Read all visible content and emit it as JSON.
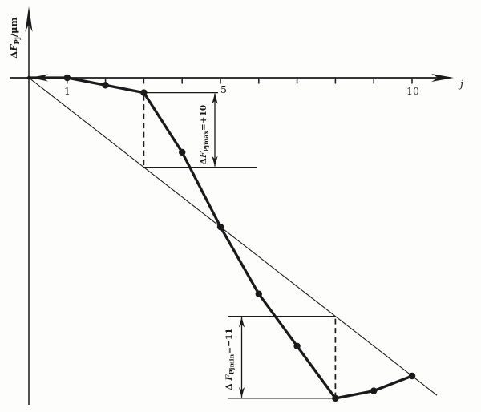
{
  "figure": {
    "background": "#fdfdfb",
    "ink": "#1a1a1a"
  },
  "chart_data": {
    "type": "line",
    "title": "",
    "xlabel": "j",
    "ylabel": "ΔF_Pj/μm",
    "ylabel_parts": {
      "prefix": "ΔF",
      "sub": "Pj",
      "suffix": "/μm"
    },
    "x": [
      0,
      1,
      2,
      3,
      4,
      5,
      6,
      7,
      8,
      9,
      10
    ],
    "series": [
      {
        "name": "cumulative-deviation-curve",
        "values": [
          0,
          0,
          -1,
          -2,
          -10,
          -20,
          -29,
          -36,
          -43,
          -42,
          -40
        ]
      }
    ],
    "reference_line": {
      "name": "linear-reference-line",
      "from_j": 0,
      "from_value": 0,
      "to_j": 10,
      "to_value": -40,
      "extend_to_j": 10.65
    },
    "x_ticks": [
      1,
      2,
      3,
      4,
      5,
      6,
      7,
      8,
      9,
      10
    ],
    "x_tick_labels": [
      {
        "j": 1,
        "label": "1"
      },
      {
        "j": 5,
        "label": "5"
      },
      {
        "j": 10,
        "label": "10"
      }
    ],
    "ylim": [
      -45,
      2
    ],
    "grid": false,
    "legend": "none",
    "annotations": [
      {
        "id": "max",
        "full": "ΔF_Pjmax=+10",
        "prefix": "ΔF",
        "sub": "Pjmax",
        "eq": "=+10",
        "at_j": 3,
        "curve_value": -2,
        "line_value": -12,
        "deviation": 10
      },
      {
        "id": "min",
        "full": "Δ F_Pjmin=−11",
        "prefix": "Δ F",
        "sub": "Pjmin",
        "eq": "=−11",
        "at_j": 8,
        "curve_value": -43,
        "line_value": -32,
        "deviation": -11
      }
    ]
  }
}
